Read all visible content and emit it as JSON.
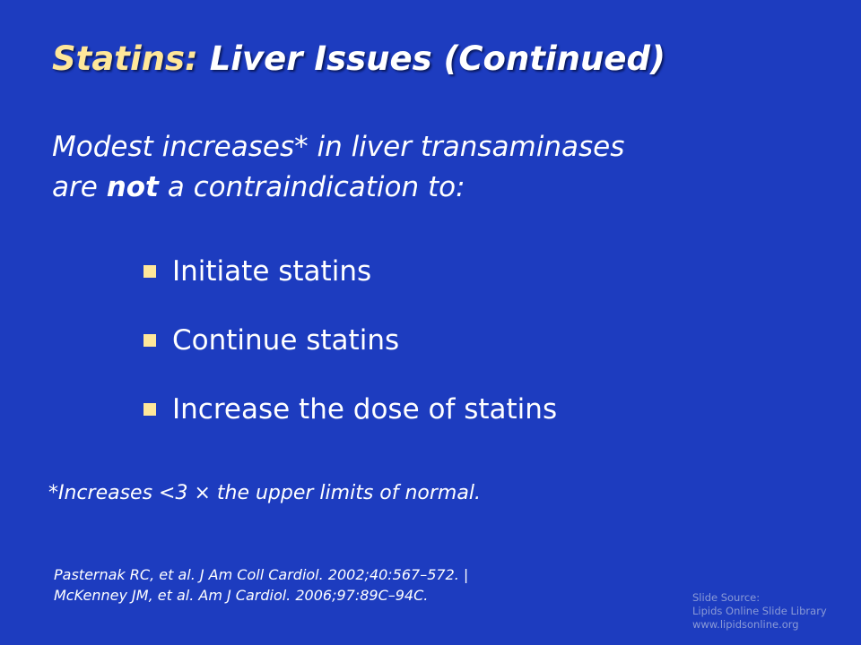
{
  "slide": {
    "title": {
      "lead": "Statins:",
      "rest": "Liver Issues (Continued)"
    },
    "intro": {
      "line1": "Modest increases* in liver transaminases",
      "line2_start": "are",
      "line2_bold": "not",
      "line2_end": "a contraindication to:"
    },
    "bullets": [
      "Initiate statins",
      "Continue statins",
      "Increase the dose of statins"
    ],
    "footnote": "*Increases <3 × the upper limits of normal.",
    "references": [
      "Pasternak RC, et al. J Am Coll Cardiol. 2002;40:567–572. |",
      "McKenney JM, et al. Am J Cardiol. 2006;97:89C–94C."
    ],
    "source": [
      "Slide Source:",
      "Lipids Online Slide Library",
      "www.lipidsonline.org"
    ]
  }
}
